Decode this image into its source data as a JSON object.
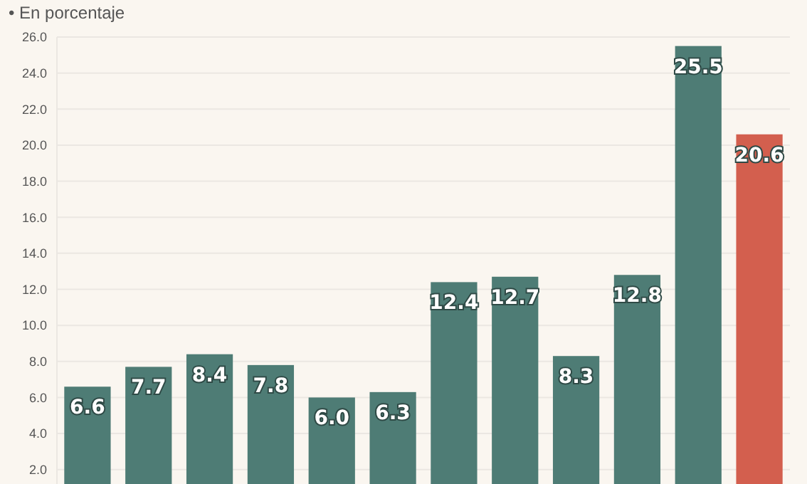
{
  "chart_data": {
    "type": "bar",
    "subtitle": "• En porcentaje",
    "categories": [
      null,
      null,
      null,
      null,
      null,
      null,
      null,
      null,
      null,
      null,
      null,
      null
    ],
    "values": [
      6.6,
      7.7,
      8.4,
      7.8,
      6.0,
      6.3,
      12.4,
      12.7,
      8.3,
      12.8,
      25.5,
      20.6
    ],
    "colors": [
      "#4e7c75",
      "#4e7c75",
      "#4e7c75",
      "#4e7c75",
      "#4e7c75",
      "#4e7c75",
      "#4e7c75",
      "#4e7c75",
      "#4e7c75",
      "#4e7c75",
      "#4e7c75",
      "#d35f4e"
    ],
    "ylim": [
      1.2,
      26
    ],
    "yticks": [
      {
        "value": 2,
        "label": "2.0"
      },
      {
        "value": 4,
        "label": "4.0"
      },
      {
        "value": 6,
        "label": "6.0"
      },
      {
        "value": 8,
        "label": "8.0"
      },
      {
        "value": 10,
        "label": "10.0"
      },
      {
        "value": 12,
        "label": "12.0"
      },
      {
        "value": 14,
        "label": "14.0"
      },
      {
        "value": 16,
        "label": "16.0"
      },
      {
        "value": 18,
        "label": "18.0"
      },
      {
        "value": 20,
        "label": "20.0"
      },
      {
        "value": 22,
        "label": "22.0"
      },
      {
        "value": 24,
        "label": "24.0"
      },
      {
        "value": 26,
        "label": "26.0"
      }
    ],
    "value_labels": [
      "6.6",
      "7.7",
      "8.4",
      "7.8",
      "6.0",
      "6.3",
      "12.4",
      "12.7",
      "8.3",
      "12.8",
      "25.5",
      "20.6"
    ],
    "grid": "y",
    "tick_labels": "y"
  }
}
